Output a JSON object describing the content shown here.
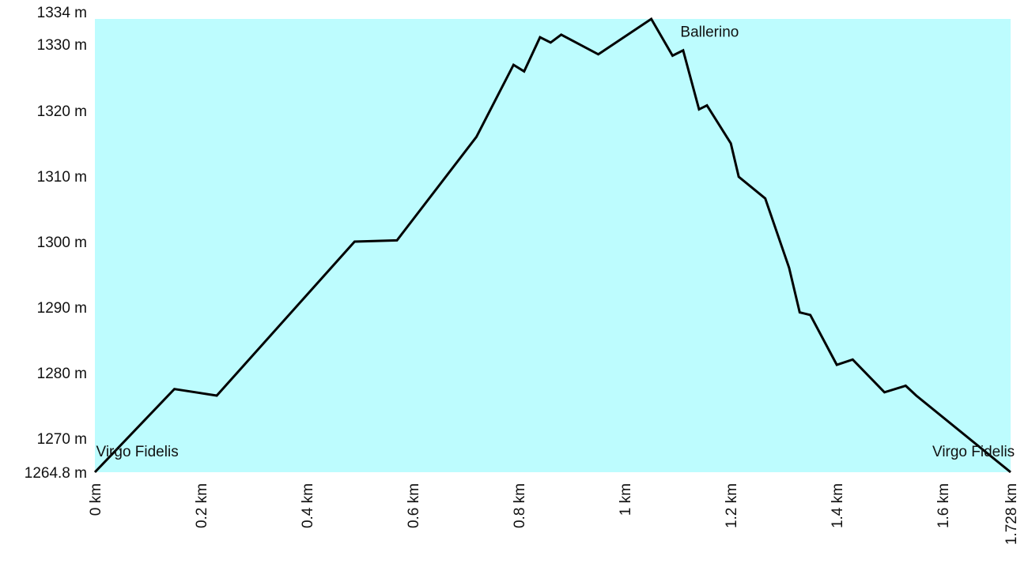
{
  "chart_data": {
    "type": "area",
    "title": "",
    "xlabel": "",
    "ylabel": "",
    "xlim": [
      0,
      1.728
    ],
    "ylim": [
      1264.8,
      1334
    ],
    "y_ticks": [
      {
        "value": 1264.8,
        "label": "1264.8 m"
      },
      {
        "value": 1270,
        "label": "1270 m"
      },
      {
        "value": 1280,
        "label": "1280 m"
      },
      {
        "value": 1290,
        "label": "1290 m"
      },
      {
        "value": 1300,
        "label": "1300 m"
      },
      {
        "value": 1310,
        "label": "1310 m"
      },
      {
        "value": 1320,
        "label": "1320 m"
      },
      {
        "value": 1330,
        "label": "1330 m"
      },
      {
        "value": 1334,
        "label": "1334 m"
      }
    ],
    "x_ticks": [
      {
        "value": 0,
        "label": "0 km"
      },
      {
        "value": 0.2,
        "label": "0.2 km"
      },
      {
        "value": 0.4,
        "label": "0.4 km"
      },
      {
        "value": 0.6,
        "label": "0.6 km"
      },
      {
        "value": 0.8,
        "label": "0.8 km"
      },
      {
        "value": 1.0,
        "label": "1 km"
      },
      {
        "value": 1.2,
        "label": "1.2 km"
      },
      {
        "value": 1.4,
        "label": "1.4 km"
      },
      {
        "value": 1.6,
        "label": "1.6 km"
      },
      {
        "value": 1.728,
        "label": "1.728 km"
      }
    ],
    "fill_color": "#bdfcfe",
    "line_color": "#000000",
    "x": [
      0,
      0.15,
      0.23,
      0.49,
      0.57,
      0.72,
      0.79,
      0.81,
      0.84,
      0.86,
      0.88,
      0.95,
      1.05,
      1.09,
      1.11,
      1.14,
      1.155,
      1.2,
      1.215,
      1.265,
      1.31,
      1.33,
      1.35,
      1.4,
      1.43,
      1.49,
      1.53,
      1.55,
      1.728
    ],
    "y": [
      1264.8,
      1277.5,
      1276.5,
      1300,
      1300.2,
      1316,
      1327,
      1326,
      1331.2,
      1330.4,
      1331.6,
      1328.6,
      1334,
      1328.4,
      1329.2,
      1320.2,
      1320.8,
      1315,
      1309.9,
      1306.6,
      1296,
      1289.2,
      1288.8,
      1281.2,
      1282,
      1277,
      1278,
      1276.5,
      1264.8
    ],
    "annotations": [
      {
        "text": "Virgo Fidelis",
        "x": 0.08,
        "y": 1267.2
      },
      {
        "text": "Ballerino",
        "x": 1.16,
        "y": 1331.3
      },
      {
        "text": "Virgo Fidelis",
        "x": 1.658,
        "y": 1267.2
      }
    ]
  }
}
